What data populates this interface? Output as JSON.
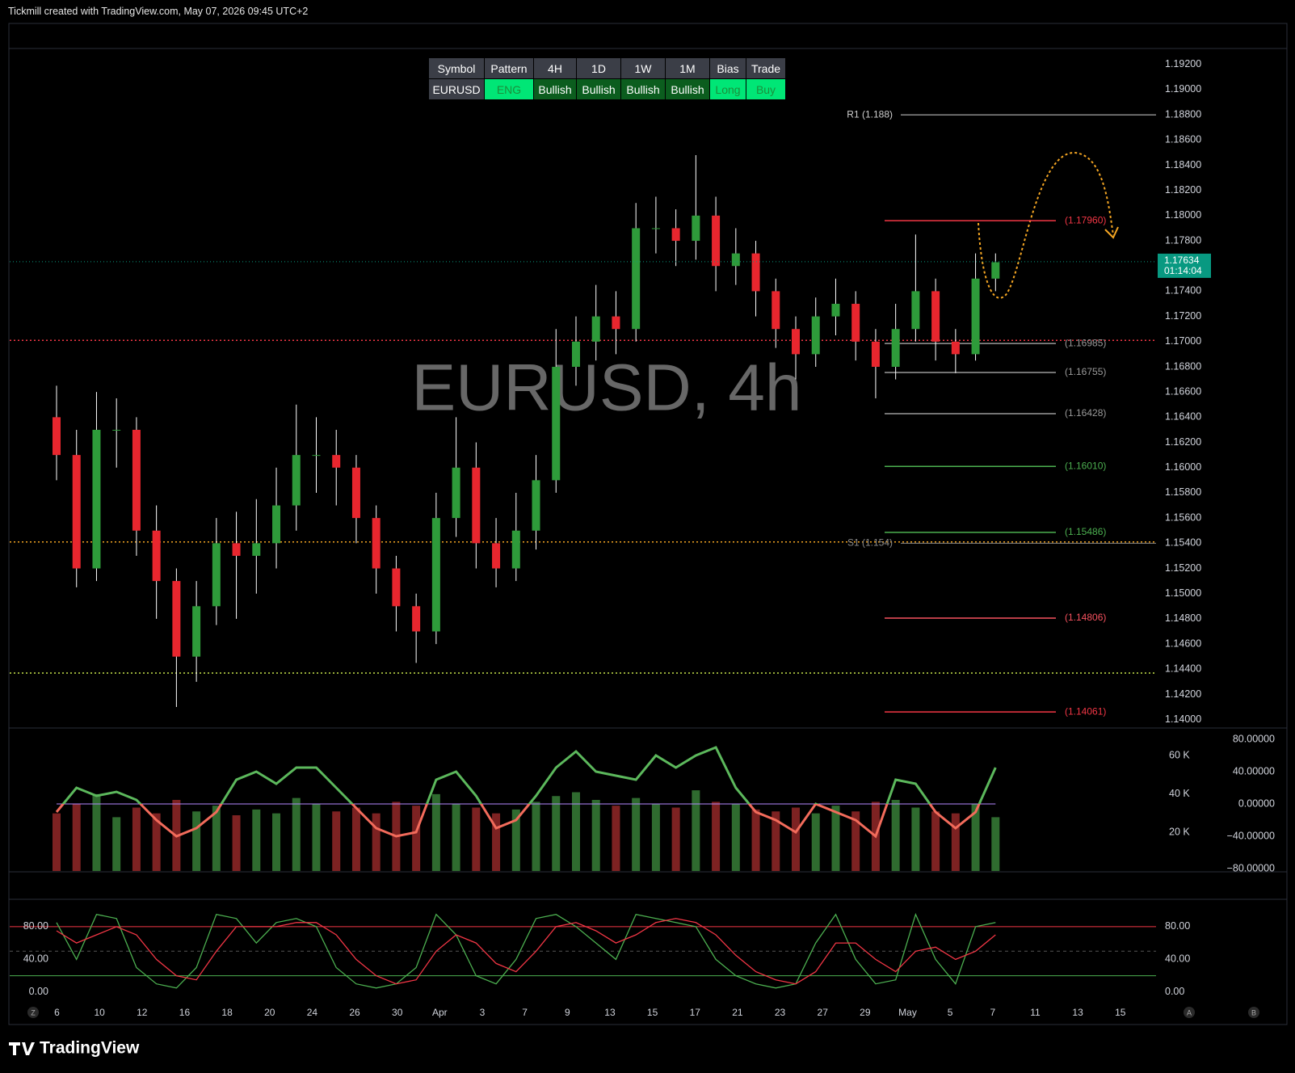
{
  "header": {
    "title": "Tickmill created with TradingView.com, May 07, 2026 09:45 UTC+2"
  },
  "table": {
    "columns": [
      "Symbol",
      "Pattern",
      "4H",
      "1D",
      "1W",
      "1M",
      "Bias",
      "Trade"
    ],
    "rows": [
      [
        "EURUSD",
        "ENG",
        "Bullish",
        "Bullish",
        "Bullish",
        "Bullish",
        "Long",
        "Buy"
      ]
    ]
  },
  "watermark": "EURUSD, 4h",
  "footer": {
    "logo": "TradingView",
    "buttons": [
      "Z",
      "A",
      "B"
    ]
  },
  "chart_data": [
    {
      "type": "candlestick",
      "xtick_labels": [
        "6",
        "10",
        "12",
        "16",
        "18",
        "20",
        "24",
        "26",
        "30",
        "Apr",
        "3",
        "7",
        "9",
        "13",
        "15",
        "17",
        "21",
        "23",
        "27",
        "29",
        "May",
        "5",
        "7",
        "11",
        "13",
        "15"
      ],
      "opens": [
        1.164,
        1.161,
        1.152,
        1.163,
        1.163,
        1.155,
        1.151,
        1.145,
        1.149,
        1.154,
        1.153,
        1.154,
        1.157,
        1.161,
        1.161,
        1.16,
        1.156,
        1.152,
        1.149,
        1.147,
        1.156,
        1.16,
        1.154,
        1.152,
        1.155,
        1.159,
        1.168,
        1.17,
        1.172,
        1.171,
        1.179,
        1.179,
        1.178,
        1.18,
        1.176,
        1.177,
        1.174,
        1.171,
        1.169,
        1.172,
        1.173,
        1.17,
        1.168,
        1.171,
        1.174,
        1.17,
        1.169,
        1.175
      ],
      "highs": [
        1.1665,
        1.163,
        1.166,
        1.1655,
        1.164,
        1.157,
        1.152,
        1.151,
        1.156,
        1.1565,
        1.1575,
        1.16,
        1.165,
        1.164,
        1.163,
        1.161,
        1.157,
        1.153,
        1.15,
        1.158,
        1.164,
        1.162,
        1.156,
        1.158,
        1.161,
        1.171,
        1.172,
        1.1745,
        1.174,
        1.181,
        1.1815,
        1.1805,
        1.1848,
        1.1815,
        1.179,
        1.178,
        1.175,
        1.172,
        1.1735,
        1.175,
        1.174,
        1.171,
        1.173,
        1.1785,
        1.175,
        1.171,
        1.177,
        1.177
      ],
      "lows": [
        1.159,
        1.1505,
        1.151,
        1.16,
        1.153,
        1.148,
        1.141,
        1.143,
        1.1475,
        1.148,
        1.15,
        1.152,
        1.155,
        1.158,
        1.157,
        1.154,
        1.15,
        1.147,
        1.1445,
        1.146,
        1.1545,
        1.152,
        1.1505,
        1.151,
        1.1535,
        1.158,
        1.1665,
        1.1685,
        1.169,
        1.17,
        1.177,
        1.176,
        1.1765,
        1.174,
        1.1745,
        1.172,
        1.1695,
        1.167,
        1.168,
        1.1705,
        1.1685,
        1.1655,
        1.167,
        1.17,
        1.1685,
        1.1675,
        1.1685,
        1.174
      ],
      "closes": [
        1.161,
        1.152,
        1.163,
        1.163,
        1.155,
        1.151,
        1.145,
        1.149,
        1.154,
        1.153,
        1.154,
        1.157,
        1.161,
        1.161,
        1.16,
        1.156,
        1.152,
        1.149,
        1.147,
        1.156,
        1.16,
        1.154,
        1.152,
        1.155,
        1.159,
        1.168,
        1.17,
        1.172,
        1.171,
        1.179,
        1.179,
        1.178,
        1.18,
        1.176,
        1.177,
        1.174,
        1.171,
        1.169,
        1.172,
        1.173,
        1.17,
        1.168,
        1.171,
        1.174,
        1.17,
        1.169,
        1.175,
        1.1763
      ],
      "up_color": "#2e9b3a",
      "down_color": "#e8262e",
      "wick_color": "#ffffff",
      "ylim": [
        1.1394,
        1.1932
      ],
      "yticks": [
        {
          "value": 1.14,
          "label": "1.14000"
        },
        {
          "value": 1.142,
          "label": "1.14200"
        },
        {
          "value": 1.144,
          "label": "1.14400"
        },
        {
          "value": 1.146,
          "label": "1.14600"
        },
        {
          "value": 1.148,
          "label": "1.14800"
        },
        {
          "value": 1.15,
          "label": "1.15000"
        },
        {
          "value": 1.152,
          "label": "1.15200"
        },
        {
          "value": 1.154,
          "label": "1.15400"
        },
        {
          "value": 1.156,
          "label": "1.15600"
        },
        {
          "value": 1.158,
          "label": "1.15800"
        },
        {
          "value": 1.16,
          "label": "1.16000"
        },
        {
          "value": 1.162,
          "label": "1.16200"
        },
        {
          "value": 1.164,
          "label": "1.16400"
        },
        {
          "value": 1.166,
          "label": "1.16600"
        },
        {
          "value": 1.168,
          "label": "1.16800"
        },
        {
          "value": 1.17,
          "label": "1.17000"
        },
        {
          "value": 1.172,
          "label": "1.17200"
        },
        {
          "value": 1.174,
          "label": "1.17400"
        },
        {
          "value": 1.176,
          "label": "1.17600"
        },
        {
          "value": 1.178,
          "label": "1.17800"
        },
        {
          "value": 1.18,
          "label": "1.18000"
        },
        {
          "value": 1.182,
          "label": "1.18200"
        },
        {
          "value": 1.184,
          "label": "1.18400"
        },
        {
          "value": 1.186,
          "label": "1.18600"
        },
        {
          "value": 1.188,
          "label": "1.18800"
        },
        {
          "value": 1.19,
          "label": "1.19000"
        },
        {
          "value": 1.192,
          "label": "1.19200"
        }
      ],
      "grid": false,
      "last_price": 1.17634,
      "countdown": "01:14:04",
      "last_color": "#089981",
      "hlines": [
        {
          "value": 1.1701,
          "color": "#f23645"
        },
        {
          "value": 1.1541,
          "color": "#f5a623"
        },
        {
          "value": 1.1437,
          "color": "#c6e34a"
        }
      ],
      "pivots": [
        {
          "label": "R1 (1.188)",
          "value": 1.188,
          "color": "#cfcfcf"
        },
        {
          "label": "S1 (1.154)",
          "value": 1.154,
          "color": "#8a8a8a"
        }
      ],
      "levels": [
        {
          "label": "(1.17960)",
          "value": 1.1796,
          "color": "#f23645"
        },
        {
          "label": "(1.16985)",
          "value": 1.16985,
          "color": "#9a9a9a"
        },
        {
          "label": "(1.16755)",
          "value": 1.16755,
          "color": "#9a9a9a"
        },
        {
          "label": "(1.16428)",
          "value": 1.16428,
          "color": "#9a9a9a"
        },
        {
          "label": "(1.16010)",
          "value": 1.1601,
          "color": "#4caf50"
        },
        {
          "label": "(1.15486)",
          "value": 1.15486,
          "color": "#4caf50"
        },
        {
          "label": "(1.14806)",
          "value": 1.14806,
          "color": "#f7525f"
        },
        {
          "label": "(1.14061)",
          "value": 1.14061,
          "color": "#f23645"
        }
      ]
    },
    {
      "type": "line",
      "values": [
        -10,
        20,
        10,
        15,
        5,
        -20,
        -40,
        -30,
        -10,
        30,
        40,
        25,
        45,
        45,
        20,
        -5,
        -30,
        -40,
        -35,
        30,
        40,
        10,
        -30,
        -20,
        10,
        45,
        65,
        40,
        35,
        30,
        60,
        45,
        60,
        70,
        20,
        -10,
        -20,
        -35,
        0,
        -10,
        -20,
        -40,
        30,
        25,
        -10,
        -30,
        -10,
        45
      ],
      "pos_color": "#5cb85c",
      "neg_color": "#f26b5b",
      "ylim": [
        -83,
        93
      ],
      "yticks": [
        {
          "value": 80,
          "label": "80.00000"
        },
        {
          "value": 40,
          "label": "40.00000"
        },
        {
          "value": 0,
          "label": "0.00000"
        },
        {
          "value": -40,
          "label": "−40.00000"
        },
        {
          "value": -80,
          "label": "−80.00000"
        }
      ],
      "hlines": [
        {
          "value": 0,
          "color": "#b388ff"
        }
      ],
      "volume": {
        "values": [
          30000,
          35000,
          40000,
          28000,
          33000,
          30000,
          37000,
          31000,
          34000,
          29000,
          32000,
          30000,
          38000,
          35000,
          31000,
          33000,
          30000,
          36000,
          34000,
          40000,
          35000,
          33000,
          30000,
          32000,
          36000,
          39000,
          41000,
          37000,
          34000,
          38000,
          35000,
          33000,
          42000,
          36000,
          35000,
          32000,
          31000,
          33000,
          30000,
          34000,
          31000,
          36000,
          37000,
          33000,
          31000,
          30000,
          35000,
          28000
        ],
        "up_color": "#2f6b2f",
        "down_color": "#7d2222",
        "ylim": [
          0,
          74000
        ],
        "yticks": [
          {
            "value": 60000,
            "label": "60 K"
          },
          {
            "value": 40000,
            "label": "40 K"
          },
          {
            "value": 20000,
            "label": "20 K"
          }
        ]
      }
    },
    {
      "type": "line",
      "series": [
        {
          "color": "#4caf50",
          "values": [
            85,
            40,
            95,
            90,
            30,
            10,
            5,
            30,
            95,
            90,
            60,
            85,
            90,
            80,
            30,
            10,
            5,
            10,
            30,
            95,
            70,
            20,
            10,
            40,
            90,
            95,
            80,
            60,
            40,
            95,
            90,
            85,
            80,
            40,
            20,
            10,
            5,
            10,
            60,
            95,
            40,
            10,
            15,
            95,
            40,
            10,
            80,
            85
          ]
        },
        {
          "color": "#f23645",
          "values": [
            75,
            60,
            70,
            80,
            70,
            40,
            20,
            15,
            50,
            80,
            80,
            80,
            85,
            85,
            70,
            40,
            20,
            10,
            15,
            50,
            70,
            60,
            35,
            25,
            50,
            80,
            85,
            75,
            60,
            70,
            85,
            90,
            85,
            70,
            45,
            25,
            15,
            10,
            25,
            60,
            60,
            40,
            25,
            50,
            55,
            40,
            50,
            70
          ]
        }
      ],
      "ylim": [
        -12,
        112.5
      ],
      "yticks": [
        {
          "value": 80,
          "label": "80.00"
        },
        {
          "value": 40,
          "label": "40.00"
        },
        {
          "value": 0,
          "label": "0.00"
        }
      ],
      "hlines": [
        {
          "value": 80,
          "color": "#f23645"
        },
        {
          "value": 50,
          "color": "#555555"
        },
        {
          "value": 20,
          "color": "#4caf50"
        }
      ]
    }
  ]
}
